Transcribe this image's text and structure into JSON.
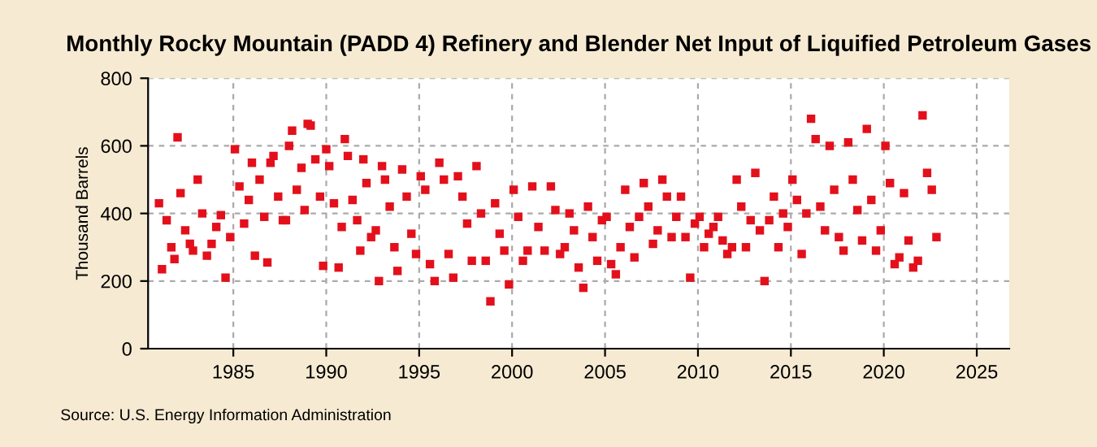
{
  "chart_data": {
    "type": "scatter",
    "title": "Monthly Rocky Mountain (PADD 4) Refinery and Blender Net Input of Liquified Petroleum Gases",
    "ylabel": "Thousand Barrels",
    "x": [
      "1981-01",
      "1981-03",
      "1981-06",
      "1981-09",
      "1981-11",
      "1982-01",
      "1982-03",
      "1982-06",
      "1982-09",
      "1982-11",
      "1983-02",
      "1983-05",
      "1983-08",
      "1983-11",
      "1984-02",
      "1984-05",
      "1984-08",
      "1984-11",
      "1985-02",
      "1985-05",
      "1985-08",
      "1985-11",
      "1986-01",
      "1986-03",
      "1986-06",
      "1986-09",
      "1986-11",
      "1987-01",
      "1987-03",
      "1987-06",
      "1987-09",
      "1987-11",
      "1988-01",
      "1988-03",
      "1988-06",
      "1988-09",
      "1988-11",
      "1989-01",
      "1989-03",
      "1989-06",
      "1989-09",
      "1989-11",
      "1990-01",
      "1990-03",
      "1990-06",
      "1990-09",
      "1990-11",
      "1991-01",
      "1991-03",
      "1991-06",
      "1991-09",
      "1991-11",
      "1992-01",
      "1992-03",
      "1992-06",
      "1992-09",
      "1992-11",
      "1993-01",
      "1993-03",
      "1993-06",
      "1993-09",
      "1993-11",
      "1994-02",
      "1994-05",
      "1994-08",
      "1994-11",
      "1995-02",
      "1995-05",
      "1995-08",
      "1995-11",
      "1996-02",
      "1996-05",
      "1996-08",
      "1996-11",
      "1997-02",
      "1997-05",
      "1997-08",
      "1997-11",
      "1998-02",
      "1998-05",
      "1998-08",
      "1998-11",
      "1999-02",
      "1999-05",
      "1999-08",
      "1999-11",
      "2000-02",
      "2000-05",
      "2000-08",
      "2000-11",
      "2001-02",
      "2001-06",
      "2001-10",
      "2002-02",
      "2002-05",
      "2002-08",
      "2002-11",
      "2003-02",
      "2003-05",
      "2003-08",
      "2003-11",
      "2004-02",
      "2004-05",
      "2004-08",
      "2004-11",
      "2005-02",
      "2005-05",
      "2005-08",
      "2005-11",
      "2006-02",
      "2006-05",
      "2006-08",
      "2006-11",
      "2007-02",
      "2007-05",
      "2007-08",
      "2007-11",
      "2008-02",
      "2008-05",
      "2008-08",
      "2008-11",
      "2009-02",
      "2009-05",
      "2009-08",
      "2009-11",
      "2010-02",
      "2010-05",
      "2010-08",
      "2010-11",
      "2011-02",
      "2011-05",
      "2011-08",
      "2011-11",
      "2012-02",
      "2012-05",
      "2012-08",
      "2012-11",
      "2013-02",
      "2013-05",
      "2013-08",
      "2013-11",
      "2014-02",
      "2014-05",
      "2014-08",
      "2014-11",
      "2015-02",
      "2015-05",
      "2015-08",
      "2015-11",
      "2016-02",
      "2016-05",
      "2016-08",
      "2016-11",
      "2017-02",
      "2017-05",
      "2017-08",
      "2017-11",
      "2018-02",
      "2018-05",
      "2018-08",
      "2018-11",
      "2019-02",
      "2019-05",
      "2019-08",
      "2019-11",
      "2020-02",
      "2020-05",
      "2020-08",
      "2020-11",
      "2021-02",
      "2021-05",
      "2021-08",
      "2021-11",
      "2022-02",
      "2022-05",
      "2022-08",
      "2022-11"
    ],
    "values": [
      430,
      235,
      380,
      300,
      265,
      625,
      460,
      350,
      310,
      290,
      500,
      400,
      275,
      310,
      360,
      395,
      210,
      330,
      590,
      480,
      370,
      440,
      550,
      275,
      500,
      390,
      255,
      550,
      570,
      450,
      380,
      380,
      600,
      645,
      470,
      535,
      410,
      665,
      660,
      560,
      450,
      245,
      590,
      540,
      430,
      240,
      360,
      620,
      570,
      440,
      380,
      290,
      560,
      490,
      330,
      350,
      200,
      540,
      500,
      420,
      300,
      230,
      530,
      450,
      340,
      280,
      510,
      470,
      250,
      200,
      550,
      500,
      280,
      210,
      510,
      450,
      370,
      260,
      540,
      400,
      260,
      140,
      430,
      340,
      290,
      190,
      470,
      390,
      260,
      290,
      480,
      360,
      290,
      480,
      410,
      280,
      300,
      400,
      350,
      240,
      180,
      420,
      330,
      260,
      380,
      390,
      250,
      220,
      300,
      470,
      360,
      270,
      390,
      490,
      420,
      310,
      350,
      500,
      450,
      330,
      390,
      450,
      330,
      210,
      370,
      390,
      300,
      340,
      360,
      390,
      320,
      280,
      300,
      500,
      420,
      300,
      380,
      520,
      350,
      200,
      380,
      450,
      300,
      400,
      360,
      500,
      440,
      280,
      400,
      680,
      620,
      420,
      350,
      600,
      470,
      330,
      290,
      610,
      500,
      410,
      320,
      650,
      440,
      290,
      350,
      600,
      490,
      250,
      270,
      460,
      320,
      240,
      260,
      690,
      520,
      470,
      330
    ],
    "color": "#e3101c",
    "marker": "square",
    "xlim": [
      "1980-06",
      "2026-10"
    ],
    "xticks": [
      {
        "value": "1985-01",
        "label": "1985"
      },
      {
        "value": "1990-01",
        "label": "1990"
      },
      {
        "value": "1995-01",
        "label": "1995"
      },
      {
        "value": "2000-01",
        "label": "2000"
      },
      {
        "value": "2005-01",
        "label": "2005"
      },
      {
        "value": "2010-01",
        "label": "2010"
      },
      {
        "value": "2015-01",
        "label": "2015"
      },
      {
        "value": "2020-01",
        "label": "2020"
      },
      {
        "value": "2025-01",
        "label": "2025"
      }
    ],
    "ylim": [
      0,
      800
    ],
    "yticks": [
      0,
      200,
      400,
      600,
      800
    ],
    "grid": true,
    "legend": false,
    "annotations": [
      "Source: U.S. Energy Information Administration"
    ]
  }
}
